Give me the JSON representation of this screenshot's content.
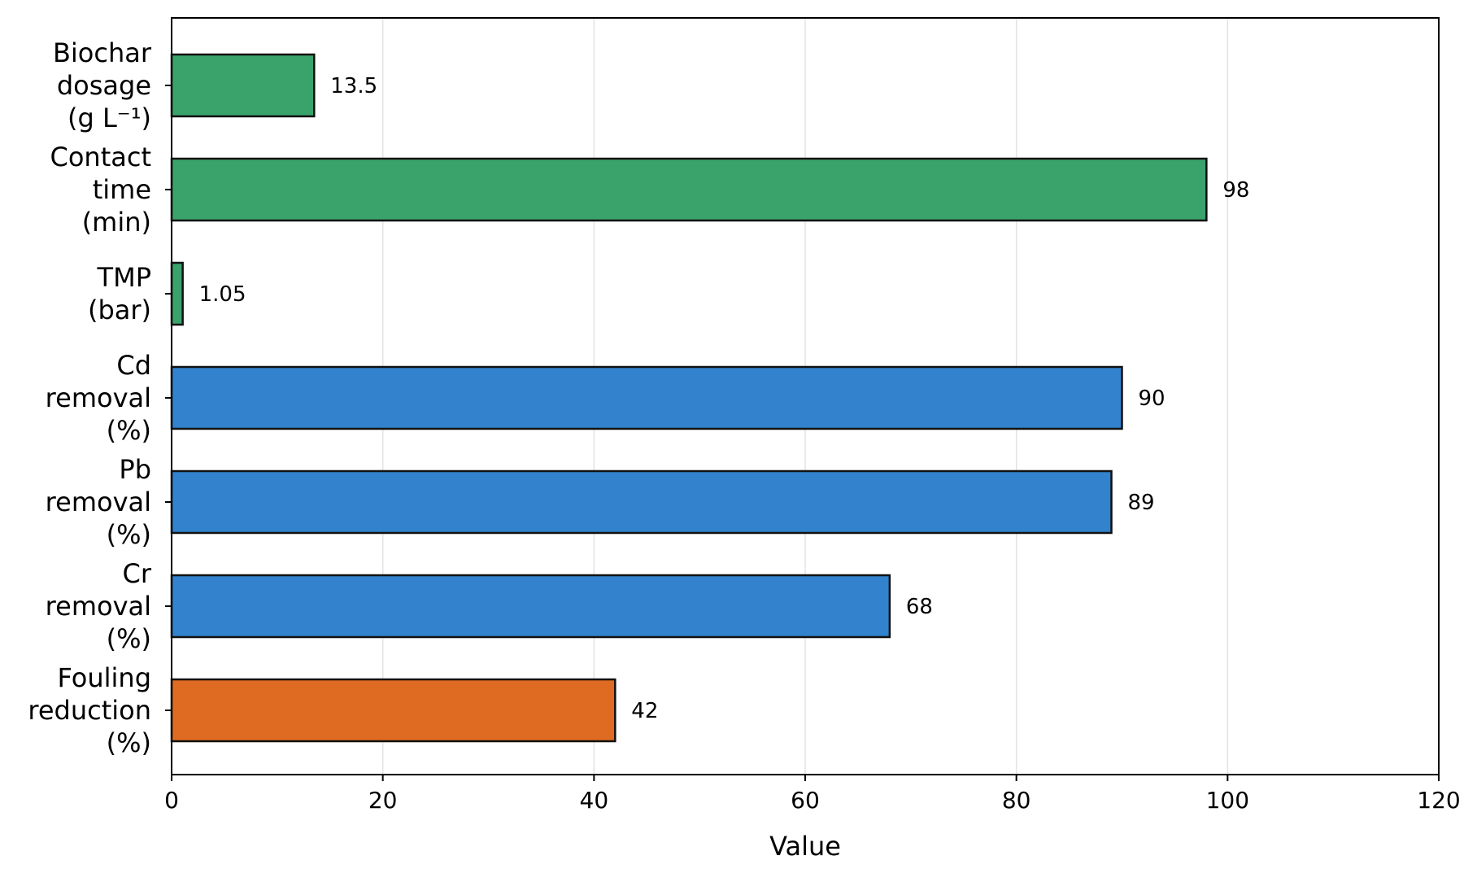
{
  "chart_data": {
    "type": "bar",
    "orientation": "horizontal",
    "title": "",
    "xlabel": "Value",
    "ylabel": "",
    "xlim": [
      0,
      120
    ],
    "x_ticks": [
      0,
      20,
      40,
      60,
      80,
      100,
      120
    ],
    "grid": "vertical",
    "categories": [
      [
        "Biochar",
        "dosage",
        "(g L⁻¹)"
      ],
      [
        "Contact",
        "time",
        "(min)"
      ],
      [
        "TMP",
        "(bar)"
      ],
      [
        "Cd",
        "removal",
        "(%)"
      ],
      [
        "Pb",
        "removal",
        "(%)"
      ],
      [
        "Cr",
        "removal",
        "(%)"
      ],
      [
        "Fouling",
        "reduction",
        "(%)"
      ]
    ],
    "values": [
      13.5,
      98,
      1.05,
      90,
      89,
      68,
      42
    ],
    "value_labels": [
      "13.5",
      "98",
      "1.05",
      "90",
      "89",
      "68",
      "42"
    ],
    "bar_colors": [
      "#3aa36b",
      "#3aa36b",
      "#3aa36b",
      "#3282cd",
      "#3282cd",
      "#3282cd",
      "#df6b22"
    ]
  }
}
